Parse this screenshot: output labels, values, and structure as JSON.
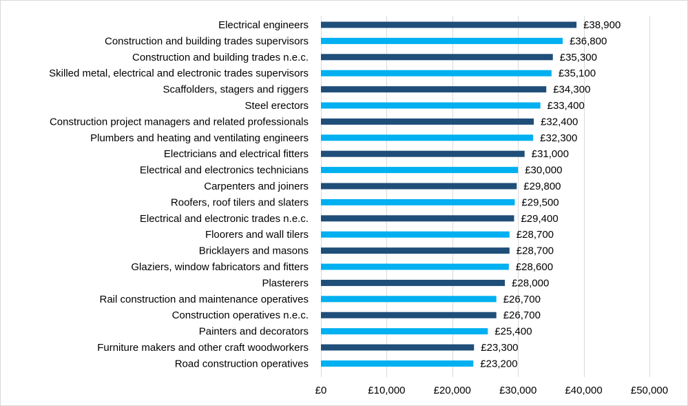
{
  "chart_data": {
    "type": "bar",
    "orientation": "horizontal",
    "title": "",
    "xlabel": "",
    "ylabel": "",
    "categories": [
      "Electrical engineers",
      "Construction and building trades supervisors",
      "Construction and building trades n.e.c.",
      "Skilled metal, electrical and electronic trades supervisors",
      "Scaffolders, stagers and riggers",
      "Steel erectors",
      "Construction project managers and related professionals",
      "Plumbers and heating and ventilating engineers",
      "Electricians and electrical fitters",
      "Electrical and electronics technicians",
      "Carpenters and joiners",
      "Roofers, roof tilers and slaters",
      "Electrical and electronic trades n.e.c.",
      "Floorers and wall tilers",
      "Bricklayers and masons",
      "Glaziers, window fabricators and fitters",
      "Plasterers",
      "Rail construction and maintenance operatives",
      "Construction operatives n.e.c.",
      "Painters and decorators",
      "Furniture makers and other craft woodworkers",
      "Road construction operatives"
    ],
    "values": [
      38900,
      36800,
      35300,
      35100,
      34300,
      33400,
      32400,
      32300,
      31000,
      30000,
      29800,
      29500,
      29400,
      28700,
      28700,
      28600,
      28000,
      26700,
      26700,
      25400,
      23300,
      23200
    ],
    "data_labels": [
      "£38,900",
      "£36,800",
      "£35,300",
      "£35,100",
      "£34,300",
      "£33,400",
      "£32,400",
      "£32,300",
      "£31,000",
      "£30,000",
      "£29,800",
      "£29,500",
      "£29,400",
      "£28,700",
      "£28,700",
      "£28,600",
      "£28,000",
      "£26,700",
      "£26,700",
      "£25,400",
      "£23,300",
      "£23,200"
    ],
    "xlim": [
      0,
      50000
    ],
    "x_ticks": [
      0,
      10000,
      20000,
      30000,
      40000,
      50000
    ],
    "x_tick_labels": [
      "£0",
      "£10,000",
      "£20,000",
      "£30,000",
      "£40,000",
      "£50,000"
    ],
    "grid": true,
    "bar_colors": [
      "#1f4e79",
      "#00b0f0"
    ]
  }
}
